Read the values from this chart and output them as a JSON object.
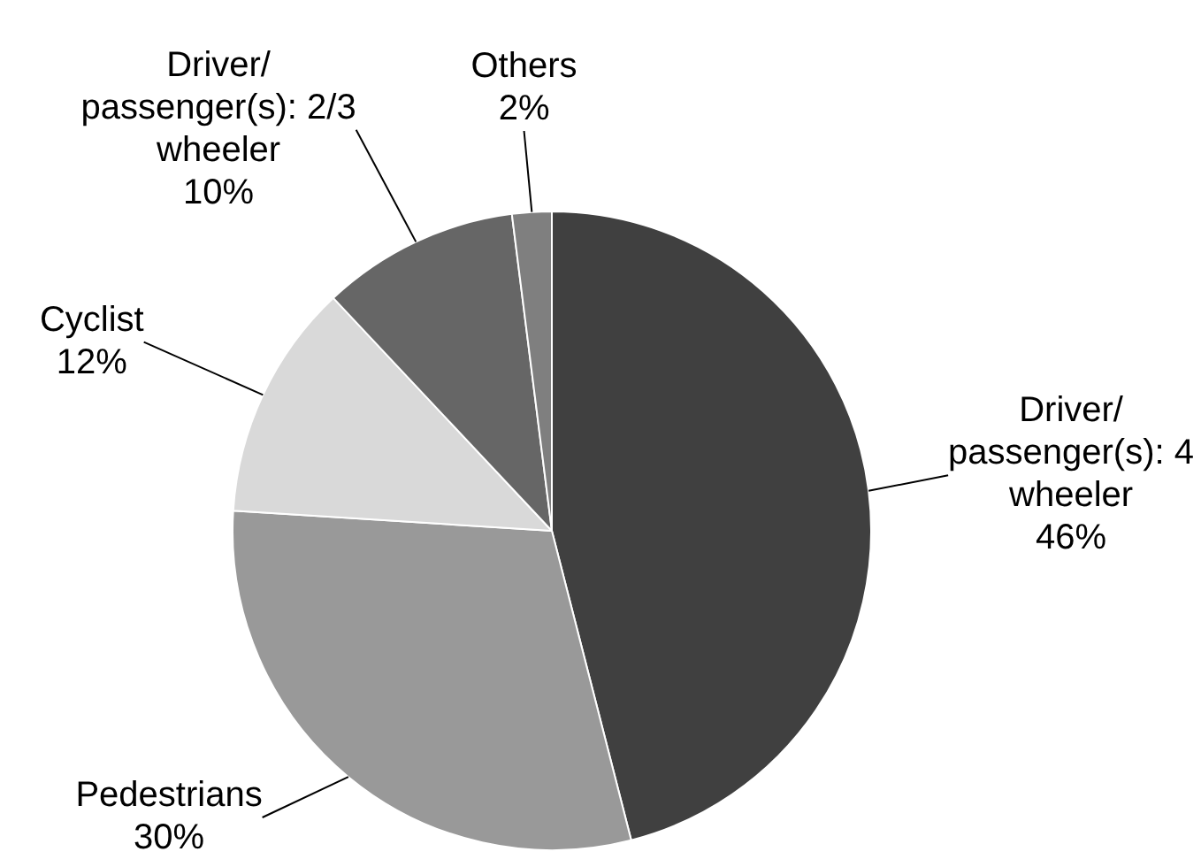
{
  "chart_data": {
    "type": "pie",
    "categories": [
      "Driver/ passenger(s): 4 wheeler",
      "Pedestrians",
      "Cyclist",
      "Driver/ passenger(s): 2/3 wheeler",
      "Others"
    ],
    "values": [
      46,
      30,
      12,
      10,
      2
    ],
    "value_labels": [
      "46%",
      "30%",
      "12%",
      "10%",
      "2%"
    ],
    "colors": [
      "#404040",
      "#999999",
      "#d9d9d9",
      "#666666",
      "#7f7f7f"
    ]
  }
}
